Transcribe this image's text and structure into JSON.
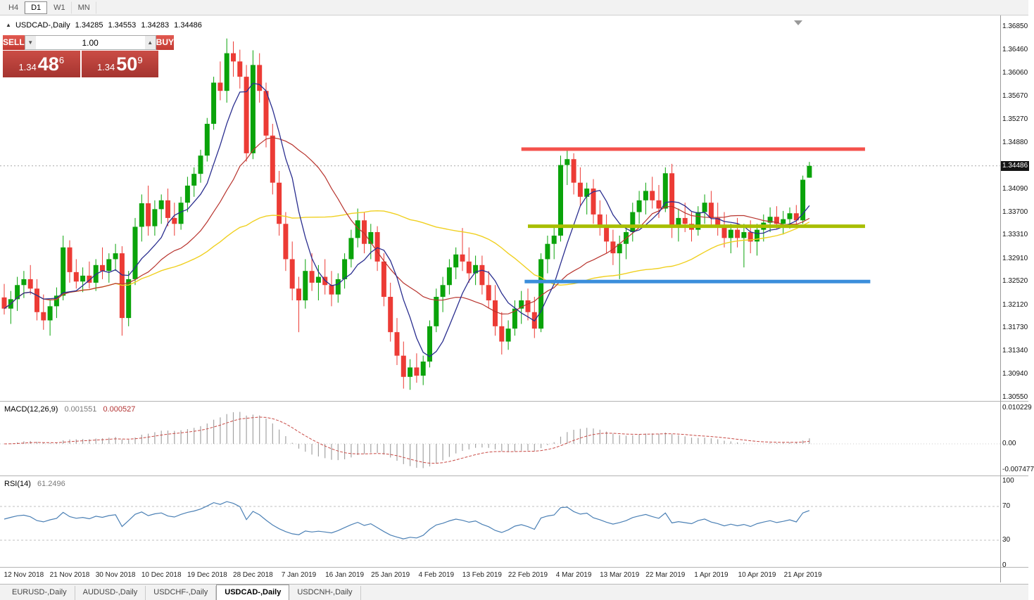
{
  "toolbar": {
    "timeframes": [
      {
        "label": "H4",
        "active": false
      },
      {
        "label": "D1",
        "active": true
      },
      {
        "label": "W1",
        "active": false
      },
      {
        "label": "MN",
        "active": false
      }
    ]
  },
  "info_bar": {
    "marker": "▲",
    "symbol": "USDCAD-,Daily",
    "open": "1.34285",
    "high": "1.34553",
    "low": "1.34283",
    "close": "1.34486"
  },
  "trade_panel": {
    "sell_label": "SELL",
    "buy_label": "BUY",
    "volume": "1.00",
    "bid": {
      "prefix": "1.34",
      "big": "48",
      "sup": "6"
    },
    "ask": {
      "prefix": "1.34",
      "big": "50",
      "sup": "9"
    }
  },
  "indicators": {
    "macd": {
      "label": "MACD(12,26,9)",
      "value_main": "0.001551",
      "value_signal": "0.000527",
      "axis": [
        "0.010229",
        "0.00",
        "-0.007477"
      ]
    },
    "rsi": {
      "label": "RSI(14)",
      "value": "61.2496",
      "axis": [
        "100",
        "70",
        "30",
        "0"
      ]
    }
  },
  "price_axis": {
    "ticks": [
      "1.36850",
      "1.36460",
      "1.36060",
      "1.35670",
      "1.35270",
      "1.34880",
      "1.34090",
      "1.33700",
      "1.33310",
      "1.32910",
      "1.32520",
      "1.32120",
      "1.31730",
      "1.31340",
      "1.30940",
      "1.30550"
    ],
    "current": "1.34486"
  },
  "date_axis": {
    "labels": [
      "12 Nov 2018",
      "21 Nov 2018",
      "30 Nov 2018",
      "10 Dec 2018",
      "19 Dec 2018",
      "28 Dec 2018",
      "7 Jan 2019",
      "16 Jan 2019",
      "25 Jan 2019",
      "4 Feb 2019",
      "13 Feb 2019",
      "22 Feb 2019",
      "4 Mar 2019",
      "13 Mar 2019",
      "22 Mar 2019",
      "1 Apr 2019",
      "10 Apr 2019",
      "21 Apr 2019"
    ],
    "indices": [
      3,
      10,
      17,
      24,
      31,
      38,
      45,
      52,
      59,
      66,
      73,
      80,
      87,
      94,
      101,
      108,
      115,
      122
    ]
  },
  "bottom_tabs": [
    {
      "label": "EURUSD-,Daily",
      "active": false
    },
    {
      "label": "AUDUSD-,Daily",
      "active": false
    },
    {
      "label": "USDCHF-,Daily",
      "active": false
    },
    {
      "label": "USDCAD-,Daily",
      "active": true
    },
    {
      "label": "USDCNH-,Daily",
      "active": false
    }
  ],
  "chart_data": {
    "type": "candlestick",
    "title": "USDCAD-,Daily",
    "current_price": 1.34486,
    "up_color": "#0AA30A",
    "down_color": "#EC3B35",
    "current_price_line_color": "#A8A8A8",
    "candles": [
      [
        1.3225,
        1.3248,
        1.3196,
        1.3206
      ],
      [
        1.3206,
        1.3236,
        1.318,
        1.3222
      ],
      [
        1.3222,
        1.326,
        1.3202,
        1.3246
      ],
      [
        1.3246,
        1.327,
        1.3224,
        1.3256
      ],
      [
        1.3256,
        1.328,
        1.323,
        1.324
      ],
      [
        1.324,
        1.3256,
        1.3186,
        1.32
      ],
      [
        1.32,
        1.323,
        1.317,
        1.3186
      ],
      [
        1.3186,
        1.322,
        1.316,
        1.321
      ],
      [
        1.321,
        1.3242,
        1.319,
        1.3228
      ],
      [
        1.3228,
        1.333,
        1.322,
        1.331
      ],
      [
        1.331,
        1.3322,
        1.325,
        1.3268
      ],
      [
        1.3268,
        1.329,
        1.324,
        1.3252
      ],
      [
        1.3252,
        1.3276,
        1.3234,
        1.3262
      ],
      [
        1.3262,
        1.3286,
        1.324,
        1.325
      ],
      [
        1.325,
        1.329,
        1.3236,
        1.328
      ],
      [
        1.328,
        1.331,
        1.3256,
        1.327
      ],
      [
        1.327,
        1.33,
        1.325,
        1.329
      ],
      [
        1.329,
        1.3316,
        1.327,
        1.33
      ],
      [
        1.33,
        1.3312,
        1.316,
        1.319
      ],
      [
        1.319,
        1.327,
        1.3176,
        1.3256
      ],
      [
        1.3256,
        1.336,
        1.3246,
        1.3345
      ],
      [
        1.3345,
        1.34,
        1.332,
        1.3385
      ],
      [
        1.3385,
        1.3415,
        1.333,
        1.3346
      ],
      [
        1.3346,
        1.339,
        1.333,
        1.3375
      ],
      [
        1.3375,
        1.34,
        1.335,
        1.339
      ],
      [
        1.339,
        1.341,
        1.3346,
        1.336
      ],
      [
        1.336,
        1.3386,
        1.333,
        1.335
      ],
      [
        1.335,
        1.3396,
        1.334,
        1.3386
      ],
      [
        1.3386,
        1.343,
        1.337,
        1.3415
      ],
      [
        1.3415,
        1.3446,
        1.3396,
        1.3435
      ],
      [
        1.3435,
        1.3476,
        1.342,
        1.3466
      ],
      [
        1.3466,
        1.353,
        1.3456,
        1.352
      ],
      [
        1.352,
        1.36,
        1.351,
        1.359
      ],
      [
        1.359,
        1.3626,
        1.356,
        1.3576
      ],
      [
        1.3576,
        1.3665,
        1.3556,
        1.364
      ],
      [
        1.364,
        1.366,
        1.36,
        1.3626
      ],
      [
        1.3626,
        1.3646,
        1.358,
        1.36
      ],
      [
        1.36,
        1.362,
        1.3456,
        1.347
      ],
      [
        1.347,
        1.3645,
        1.346,
        1.362
      ],
      [
        1.362,
        1.364,
        1.3556,
        1.3576
      ],
      [
        1.3576,
        1.359,
        1.348,
        1.35
      ],
      [
        1.35,
        1.352,
        1.34,
        1.342
      ],
      [
        1.342,
        1.344,
        1.333,
        1.335
      ],
      [
        1.335,
        1.337,
        1.327,
        1.329
      ],
      [
        1.329,
        1.332,
        1.322,
        1.324
      ],
      [
        1.324,
        1.326,
        1.3166,
        1.322
      ],
      [
        1.322,
        1.329,
        1.3206,
        1.327
      ],
      [
        1.327,
        1.33,
        1.3236,
        1.325
      ],
      [
        1.325,
        1.328,
        1.322,
        1.326
      ],
      [
        1.326,
        1.329,
        1.323,
        1.3246
      ],
      [
        1.3246,
        1.327,
        1.321,
        1.323
      ],
      [
        1.323,
        1.3266,
        1.3216,
        1.3256
      ],
      [
        1.3256,
        1.33,
        1.324,
        1.329
      ],
      [
        1.329,
        1.334,
        1.3276,
        1.3326
      ],
      [
        1.3326,
        1.3376,
        1.331,
        1.3356
      ],
      [
        1.3356,
        1.337,
        1.33,
        1.3316
      ],
      [
        1.3316,
        1.335,
        1.329,
        1.3336
      ],
      [
        1.3336,
        1.3346,
        1.327,
        1.3286
      ],
      [
        1.3286,
        1.33,
        1.321,
        1.3226
      ],
      [
        1.3226,
        1.325,
        1.315,
        1.3166
      ],
      [
        1.3166,
        1.319,
        1.311,
        1.3126
      ],
      [
        1.3126,
        1.315,
        1.307,
        1.309
      ],
      [
        1.309,
        1.312,
        1.3068,
        1.3106
      ],
      [
        1.3106,
        1.313,
        1.308,
        1.3092
      ],
      [
        1.3092,
        1.3126,
        1.3076,
        1.3116
      ],
      [
        1.3116,
        1.3186,
        1.3106,
        1.3176
      ],
      [
        1.3176,
        1.324,
        1.3166,
        1.3226
      ],
      [
        1.3226,
        1.326,
        1.32,
        1.3246
      ],
      [
        1.3246,
        1.329,
        1.323,
        1.3276
      ],
      [
        1.3276,
        1.331,
        1.3256,
        1.3298
      ],
      [
        1.3298,
        1.3343,
        1.327,
        1.3286
      ],
      [
        1.3286,
        1.331,
        1.325,
        1.3266
      ],
      [
        1.3266,
        1.3296,
        1.3246,
        1.328
      ],
      [
        1.328,
        1.3296,
        1.323,
        1.3246
      ],
      [
        1.3246,
        1.327,
        1.3206,
        1.322
      ],
      [
        1.322,
        1.3246,
        1.316,
        1.3176
      ],
      [
        1.3176,
        1.32,
        1.3128,
        1.315
      ],
      [
        1.315,
        1.3186,
        1.3136,
        1.3172
      ],
      [
        1.3172,
        1.322,
        1.316,
        1.3206
      ],
      [
        1.3206,
        1.3236,
        1.318,
        1.322
      ],
      [
        1.322,
        1.324,
        1.3186,
        1.32
      ],
      [
        1.32,
        1.3226,
        1.3156,
        1.3172
      ],
      [
        1.3172,
        1.33,
        1.3166,
        1.329
      ],
      [
        1.329,
        1.333,
        1.3266,
        1.3316
      ],
      [
        1.3316,
        1.3346,
        1.329,
        1.333
      ],
      [
        1.333,
        1.3466,
        1.332,
        1.345
      ],
      [
        1.345,
        1.3476,
        1.3416,
        1.346
      ],
      [
        1.346,
        1.347,
        1.34,
        1.342
      ],
      [
        1.342,
        1.3446,
        1.338,
        1.3396
      ],
      [
        1.3396,
        1.342,
        1.3366,
        1.341
      ],
      [
        1.341,
        1.3426,
        1.335,
        1.3366
      ],
      [
        1.3366,
        1.339,
        1.333,
        1.3346
      ],
      [
        1.3346,
        1.3366,
        1.33,
        1.332
      ],
      [
        1.332,
        1.334,
        1.328,
        1.33
      ],
      [
        1.33,
        1.333,
        1.3256,
        1.3316
      ],
      [
        1.3316,
        1.3346,
        1.329,
        1.3336
      ],
      [
        1.3336,
        1.3386,
        1.332,
        1.337
      ],
      [
        1.337,
        1.3406,
        1.335,
        1.339
      ],
      [
        1.339,
        1.342,
        1.3366,
        1.3406
      ],
      [
        1.3406,
        1.343,
        1.3376,
        1.339
      ],
      [
        1.339,
        1.3416,
        1.336,
        1.3376
      ],
      [
        1.3376,
        1.3446,
        1.337,
        1.3436
      ],
      [
        1.3436,
        1.3452,
        1.3326,
        1.3346
      ],
      [
        1.3346,
        1.3376,
        1.332,
        1.336
      ],
      [
        1.336,
        1.3386,
        1.3336,
        1.335
      ],
      [
        1.335,
        1.337,
        1.332,
        1.334
      ],
      [
        1.334,
        1.338,
        1.333,
        1.337
      ],
      [
        1.337,
        1.34,
        1.335,
        1.3386
      ],
      [
        1.3386,
        1.3406,
        1.3346,
        1.336
      ],
      [
        1.336,
        1.3386,
        1.333,
        1.3346
      ],
      [
        1.3346,
        1.337,
        1.331,
        1.3326
      ],
      [
        1.3326,
        1.335,
        1.33,
        1.334
      ],
      [
        1.334,
        1.336,
        1.331,
        1.3326
      ],
      [
        1.3326,
        1.335,
        1.3276,
        1.3336
      ],
      [
        1.3336,
        1.3356,
        1.33,
        1.332
      ],
      [
        1.332,
        1.335,
        1.3296,
        1.334
      ],
      [
        1.334,
        1.3366,
        1.332,
        1.3352
      ],
      [
        1.3352,
        1.3378,
        1.3336,
        1.3362
      ],
      [
        1.3362,
        1.338,
        1.3342,
        1.335
      ],
      [
        1.335,
        1.3372,
        1.3332,
        1.3358
      ],
      [
        1.3358,
        1.3378,
        1.3342,
        1.3368
      ],
      [
        1.3368,
        1.3382,
        1.3346,
        1.3356
      ],
      [
        1.3356,
        1.3432,
        1.335,
        1.3425
      ],
      [
        1.34285,
        1.34553,
        1.34283,
        1.34486
      ]
    ],
    "moving_averages": [
      {
        "period": 45,
        "color": "#F0D020",
        "width": 1.4
      },
      {
        "period": 18,
        "color": "#B8342E",
        "width": 1.2
      },
      {
        "period": 7,
        "color": "#2A2E8F",
        "width": 1.3
      }
    ],
    "horizontal_lines": [
      {
        "name": "resistance-line-red",
        "price": 1.3477,
        "from_idx": 79,
        "to_idx": 131.5,
        "color": "#F4514C",
        "width": 5
      },
      {
        "name": "mid-line-olive",
        "price": 1.3346,
        "from_idx": 80,
        "to_idx": 131.5,
        "color": "#A8BE00",
        "width": 5
      },
      {
        "name": "support-line-blue",
        "price": 1.3252,
        "from_idx": 79.5,
        "to_idx": 132.3,
        "color": "#3B8EDB",
        "width": 5
      }
    ],
    "macd": {
      "fast": 12,
      "slow": 26,
      "signal": 9,
      "hist_color": "#A3A3A3",
      "signal_color": "#C84A45"
    },
    "rsi": {
      "period": 14,
      "color": "#4B80B5",
      "levels": [
        70,
        30
      ],
      "level_color": "#c0c0c0"
    }
  }
}
